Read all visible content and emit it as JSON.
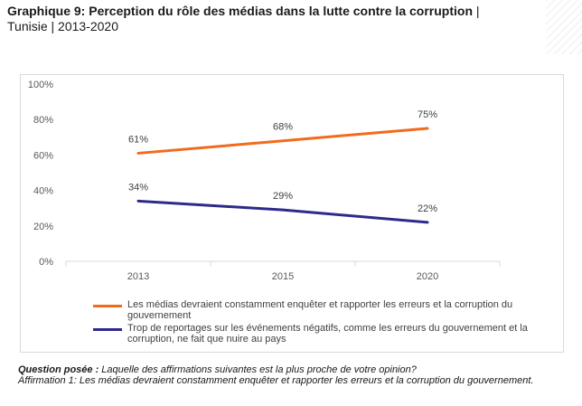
{
  "header": {
    "title": "Graphique 9: Perception du rôle des médias dans la lutte contre la corruption",
    "separator": "|",
    "subtitle": "Tunisie | 2013-2020"
  },
  "chart_data": {
    "type": "line",
    "x": [
      "2013",
      "2015",
      "2020"
    ],
    "ylim": [
      0,
      100
    ],
    "yticks": [
      "0%",
      "20%",
      "40%",
      "60%",
      "80%",
      "100%"
    ],
    "grid": false,
    "legend_position": "bottom",
    "series": [
      {
        "name": "Les médias devraient constamment enquêter et rapporter les erreurs et la corruption du gouvernement",
        "values": [
          61,
          68,
          75
        ],
        "labels": [
          "61%",
          "68%",
          "75%"
        ],
        "color": "#f26b1d"
      },
      {
        "name": "Trop de reportages sur les événements négatifs, comme les erreurs du gouvernement et la corruption, ne fait que nuire au pays",
        "values": [
          34,
          29,
          22
        ],
        "labels": [
          "34%",
          "29%",
          "22%"
        ],
        "color": "#2e2a8c"
      }
    ]
  },
  "footnote": {
    "question_label": "Question posée :",
    "question_text": " Laquelle des affirmations suivantes est la plus proche de votre opinion?",
    "affirmation": "Affirmation 1: Les médias devraient constamment enquêter et rapporter les erreurs et la corruption du gouvernement."
  }
}
